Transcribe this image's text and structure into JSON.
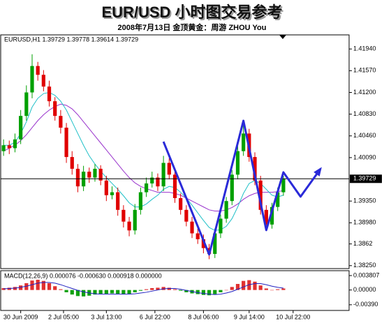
{
  "header": {
    "title": "EUR/USD 小时图交易参考",
    "subtitle": "2008年7月13日   金顶黄金：周游 ZHOU You"
  },
  "chart_data": [
    {
      "type": "candlestick",
      "label": "EURUSD,H1 1.39729 1.39778 1.39614 1.39729",
      "up_color": "#00a000",
      "down_color": "#e00000",
      "open": [
        1.402,
        1.403,
        1.4025,
        1.404,
        1.408,
        1.412,
        1.4165,
        1.415,
        1.413,
        1.4105,
        1.408,
        1.406,
        1.401,
        1.399,
        1.396,
        1.3985,
        1.3975,
        1.399,
        1.397,
        1.3945,
        1.395,
        1.392,
        1.39,
        1.3885,
        1.392,
        1.395,
        1.3965,
        1.3975,
        1.396,
        1.4,
        1.398,
        1.394,
        1.392,
        1.39,
        1.388,
        1.387,
        1.3855,
        1.3845,
        1.388,
        1.3905,
        1.3935,
        1.398,
        1.402,
        1.405,
        1.401,
        1.397,
        1.392,
        1.3895,
        1.3925,
        1.395
      ],
      "high": [
        1.404,
        1.4038,
        1.405,
        1.409,
        1.4132,
        1.4185,
        1.4172,
        1.4158,
        1.414,
        1.4112,
        1.409,
        1.4068,
        1.402,
        1.3998,
        1.3995,
        1.3992,
        1.3998,
        1.3996,
        1.3978,
        1.396,
        1.3958,
        1.3928,
        1.3908,
        1.393,
        1.3958,
        1.3975,
        1.3985,
        1.3982,
        1.4012,
        1.4008,
        1.3988,
        1.3948,
        1.3928,
        1.3908,
        1.3888,
        1.3878,
        1.3862,
        1.3888,
        1.3912,
        1.3942,
        1.3988,
        1.403,
        1.4065,
        1.4058,
        1.4018,
        1.3978,
        1.3928,
        1.3932,
        1.3958,
        1.3978
      ],
      "low": [
        1.4012,
        1.4015,
        1.4018,
        1.4032,
        1.4072,
        1.411,
        1.414,
        1.4122,
        1.4096,
        1.4072,
        1.405,
        1.4,
        1.398,
        1.395,
        1.3952,
        1.3966,
        1.3968,
        1.3962,
        1.3935,
        1.3938,
        1.391,
        1.389,
        1.3875,
        1.3878,
        1.3912,
        1.3942,
        1.3958,
        1.3952,
        1.3952,
        1.3972,
        1.3932,
        1.3912,
        1.3892,
        1.3872,
        1.3862,
        1.3846,
        1.3836,
        1.3838,
        1.3872,
        1.3898,
        1.3928,
        1.3972,
        1.4012,
        1.4002,
        1.3962,
        1.3912,
        1.3886,
        1.3888,
        1.3918,
        1.3944
      ],
      "close": [
        1.403,
        1.4025,
        1.404,
        1.408,
        1.412,
        1.4165,
        1.415,
        1.413,
        1.4105,
        1.408,
        1.406,
        1.401,
        1.399,
        1.396,
        1.3985,
        1.3975,
        1.399,
        1.397,
        1.3945,
        1.395,
        1.392,
        1.39,
        1.3885,
        1.392,
        1.395,
        1.3965,
        1.3975,
        1.396,
        1.4,
        1.398,
        1.394,
        1.392,
        1.39,
        1.388,
        1.387,
        1.3855,
        1.3845,
        1.388,
        1.3905,
        1.3935,
        1.398,
        1.402,
        1.405,
        1.401,
        1.397,
        1.392,
        1.3895,
        1.3925,
        1.395,
        1.3973
      ],
      "lines": [
        {
          "color": "#9933cc",
          "values": [
            1.402,
            1.4025,
            1.403,
            1.4038,
            1.4048,
            1.406,
            1.4072,
            1.4082,
            1.409,
            1.4096,
            1.41,
            1.4098,
            1.4092,
            1.4082,
            1.407,
            1.4058,
            1.4046,
            1.4034,
            1.4022,
            1.401,
            1.3998,
            1.3986,
            1.3975,
            1.3966,
            1.396,
            1.3956,
            1.3953,
            1.395,
            1.395,
            1.395,
            1.3948,
            1.3945,
            1.394,
            1.3935,
            1.393,
            1.3925,
            1.392,
            1.3918,
            1.3918,
            1.392,
            1.3924,
            1.393,
            1.3938,
            1.3944,
            1.3948,
            1.395,
            1.395,
            1.395,
            1.3951,
            1.3953
          ]
        },
        {
          "color": "#20c0c8",
          "values": [
            1.403,
            1.403,
            1.4035,
            1.405,
            1.407,
            1.4095,
            1.411,
            1.4118,
            1.412,
            1.4115,
            1.4105,
            1.409,
            1.407,
            1.405,
            1.403,
            1.4012,
            1.3998,
            1.3986,
            1.3975,
            1.3965,
            1.3955,
            1.3944,
            1.3932,
            1.3925,
            1.3925,
            1.393,
            1.3938,
            1.3945,
            1.3955,
            1.396,
            1.3958,
            1.395,
            1.394,
            1.3928,
            1.3915,
            1.3902,
            1.389,
            1.3885,
            1.3886,
            1.3892,
            1.3905,
            1.3925,
            1.3948,
            1.3965,
            1.397,
            1.3965,
            1.3955,
            1.3945,
            1.3942,
            1.3945
          ]
        }
      ],
      "annotation_path": {
        "color": "#2a2ad8",
        "x": [
          28,
          36,
          42,
          46,
          49,
          52,
          55.5
        ],
        "y": [
          1.40362,
          1.3844,
          1.40718,
          1.38855,
          1.3984,
          1.39425,
          1.39899
        ]
      },
      "current_price": {
        "value": 1.39729,
        "label": "1.39729"
      },
      "xlim": [
        -0.5,
        60.5
      ],
      "xticks": [
        {
          "value": 3,
          "label": "30 Jun 2009"
        },
        {
          "value": 10.5,
          "label": "2 Jul 05:00"
        },
        {
          "value": 18,
          "label": "3 Jul 13:00"
        },
        {
          "value": 26.5,
          "label": "6 Jul 22:00"
        },
        {
          "value": 35,
          "label": "8 Jul 06:00"
        },
        {
          "value": 43,
          "label": "9 Jul 14:00"
        },
        {
          "value": 50.7,
          "label": "10 Jul 22:00"
        }
      ],
      "ylim": [
        1.382,
        1.4218
      ],
      "yticks": [
        {
          "value": 1.4194,
          "label": "1.41940"
        },
        {
          "value": 1.4157,
          "label": "1.41570"
        },
        {
          "value": 1.412,
          "label": "1.41200"
        },
        {
          "value": 1.4083,
          "label": "1.40830"
        },
        {
          "value": 1.4046,
          "label": "1.40460"
        },
        {
          "value": 1.4009,
          "label": "1.40090"
        },
        {
          "value": 1.3935,
          "label": "1.39350"
        },
        {
          "value": 1.3898,
          "label": "1.38980"
        },
        {
          "value": 1.3862,
          "label": "1.3862"
        },
        {
          "value": 1.3825,
          "label": "1.38250"
        }
      ]
    },
    {
      "type": "macd",
      "label": "MACD(12,26,9) 0.000076 -0.000630 0.000918 0.000000",
      "pos_color": "#e03030",
      "neg_color": "#10a010",
      "signal_color": "#2020c0",
      "values": [
        0.0005,
        0.0006,
        0.0008,
        0.0012,
        0.0018,
        0.0025,
        0.0027,
        0.0024,
        0.0018,
        0.001,
        0.0002,
        -0.0006,
        -0.0012,
        -0.0016,
        -0.0017,
        -0.0015,
        -0.0012,
        -0.001,
        -0.001,
        -0.0009,
        -0.001,
        -0.0011,
        -0.001,
        -0.0006,
        -0.0002,
        0.0002,
        0.0005,
        0.0006,
        0.0008,
        0.0006,
        0.0002,
        -0.0002,
        -0.0006,
        -0.0009,
        -0.0011,
        -0.0013,
        -0.0014,
        -0.0011,
        -0.0006,
        0.0,
        0.0008,
        0.0016,
        0.0024,
        0.0026,
        0.0022,
        0.0012,
        0.0004,
        0.0,
        0.0002,
        0.0004
      ],
      "signal": [
        0.0003,
        0.0004,
        0.0005,
        0.0007,
        0.001,
        0.0014,
        0.0018,
        0.002,
        0.002,
        0.0018,
        0.0014,
        0.0009,
        0.0004,
        -0.0001,
        -0.0005,
        -0.0008,
        -0.001,
        -0.0011,
        -0.0011,
        -0.0011,
        -0.0011,
        -0.0011,
        -0.0011,
        -0.001,
        -0.0008,
        -0.0006,
        -0.0003,
        0.0,
        0.0003,
        0.0004,
        0.0004,
        0.0002,
        -0.0001,
        -0.0004,
        -0.0007,
        -0.0009,
        -0.0011,
        -0.0012,
        -0.0011,
        -0.0008,
        -0.0004,
        0.0002,
        0.0008,
        0.0014,
        0.0017,
        0.0017,
        0.0014,
        0.001,
        0.0007,
        0.0005
      ],
      "ylim": [
        -0.0054,
        0.0051
      ],
      "yticks": [
        0.003807,
        {
          "value": 0,
          "label": "0.00000"
        },
        {
          "value": -0.0039,
          "label": "-0.00390"
        }
      ]
    }
  ]
}
